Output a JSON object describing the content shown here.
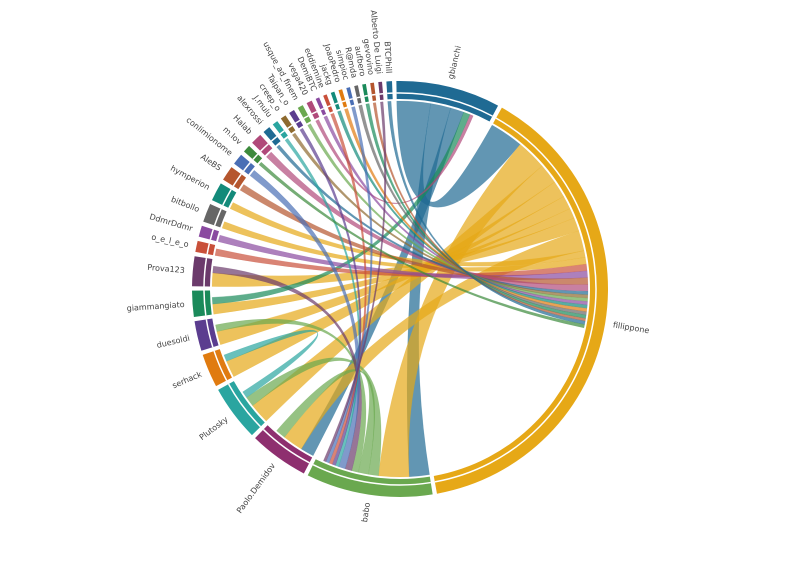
{
  "chart_data": {
    "type": "chord",
    "nodes": [
      {
        "name": "gbianchi",
        "color": "#1f6a93",
        "value": 28
      },
      {
        "name": "fillippone",
        "color": "#e6a817",
        "value": 135
      },
      {
        "name": "babo",
        "color": "#6aa84f",
        "value": 34
      },
      {
        "name": "Paolo.Demidov",
        "color": "#8e2f6f",
        "value": 16
      },
      {
        "name": "Plutosky",
        "color": "#2aa5a0",
        "value": 15
      },
      {
        "name": "serhack",
        "color": "#e07b10",
        "value": 9
      },
      {
        "name": "duesoldi",
        "color": "#5b3d8f",
        "value": 8
      },
      {
        "name": "giammangiato",
        "color": "#1a8a5a",
        "value": 7
      },
      {
        "name": "Prova123",
        "color": "#6b3a6b",
        "value": 8
      },
      {
        "name": "o_e_l_e_o",
        "color": "#c9503a",
        "value": 3
      },
      {
        "name": "DdmrDdmr",
        "color": "#8a4aa0",
        "value": 3
      },
      {
        "name": "bitbollo",
        "color": "#666666",
        "value": 5
      },
      {
        "name": "hymperion",
        "color": "#138a7a",
        "value": 5
      },
      {
        "name": "AleBS",
        "color": "#b5562e",
        "value": 4
      },
      {
        "name": "conlimionome",
        "color": "#4a6fb5",
        "value": 3
      },
      {
        "name": "m.lov",
        "color": "#3c8a3c",
        "value": 2
      },
      {
        "name": "Halab",
        "color": "#b04a7a",
        "value": 3
      },
      {
        "name": "alexrossi",
        "color": "#1f6a93",
        "value": 2
      },
      {
        "name": "J.mulu",
        "color": "#2aa5a0",
        "value": 1.5
      },
      {
        "name": "creep_o",
        "color": "#8e6a2f",
        "value": 1.5
      },
      {
        "name": "Taipan_o",
        "color": "#5b3d8f",
        "value": 1.5
      },
      {
        "name": "usque_ad_finem",
        "color": "#6aa84f",
        "value": 1.5
      },
      {
        "name": "vega420",
        "color": "#b04a7a",
        "value": 1.5
      },
      {
        "name": "DemiBTC",
        "color": "#8a4aa0",
        "value": 1
      },
      {
        "name": "eddiemine",
        "color": "#c9503a",
        "value": 1
      },
      {
        "name": "jackg",
        "color": "#138a7a",
        "value": 1
      },
      {
        "name": "JoaoPedro",
        "color": "#e07b10",
        "value": 1
      },
      {
        "name": "simpioc",
        "color": "#4a6fb5",
        "value": 1
      },
      {
        "name": "R@mda",
        "color": "#666666",
        "value": 1
      },
      {
        "name": "aufbero",
        "color": "#1a8a5a",
        "value": 1
      },
      {
        "name": "gevovino",
        "color": "#b5562e",
        "value": 1
      },
      {
        "name": "Alberto De Luigi",
        "color": "#6b3a6b",
        "value": 1
      },
      {
        "name": "BTCPhill",
        "color": "#1f6a93",
        "value": 1.5
      }
    ],
    "links": [
      {
        "source": 0,
        "target": 1,
        "value": 10
      },
      {
        "source": 0,
        "target": 2,
        "value": 6
      },
      {
        "source": 0,
        "target": 3,
        "value": 4
      },
      {
        "source": 1,
        "target": 2,
        "value": 9
      },
      {
        "source": 1,
        "target": 4,
        "value": 6
      },
      {
        "source": 1,
        "target": 5,
        "value": 5
      },
      {
        "source": 1,
        "target": 6,
        "value": 4
      },
      {
        "source": 1,
        "target": 7,
        "value": 3
      },
      {
        "source": 1,
        "target": 8,
        "value": 4
      },
      {
        "source": 1,
        "target": 3,
        "value": 6
      },
      {
        "source": 1,
        "target": 12,
        "value": 2
      },
      {
        "source": 1,
        "target": 11,
        "value": 2
      },
      {
        "source": 2,
        "target": 4,
        "value": 3
      },
      {
        "source": 2,
        "target": 3,
        "value": 3
      },
      {
        "source": 2,
        "target": 6,
        "value": 2
      },
      {
        "source": 4,
        "target": 5,
        "value": 2
      },
      {
        "source": 8,
        "target": 2,
        "value": 2
      },
      {
        "source": 7,
        "target": 0,
        "value": 2
      },
      {
        "source": 9,
        "target": 1,
        "value": 2
      },
      {
        "source": 10,
        "target": 1,
        "value": 2
      },
      {
        "source": 13,
        "target": 1,
        "value": 2
      },
      {
        "source": 14,
        "target": 2,
        "value": 2
      },
      {
        "source": 16,
        "target": 1,
        "value": 2
      },
      {
        "source": 17,
        "target": 1,
        "value": 1
      },
      {
        "source": 18,
        "target": 2,
        "value": 1
      },
      {
        "source": 19,
        "target": 1,
        "value": 1
      },
      {
        "source": 20,
        "target": 2,
        "value": 1
      },
      {
        "source": 21,
        "target": 1,
        "value": 1
      },
      {
        "source": 22,
        "target": 0,
        "value": 1
      },
      {
        "source": 23,
        "target": 1,
        "value": 1
      },
      {
        "source": 24,
        "target": 2,
        "value": 1
      },
      {
        "source": 25,
        "target": 1,
        "value": 1
      },
      {
        "source": 26,
        "target": 1,
        "value": 1
      },
      {
        "source": 27,
        "target": 2,
        "value": 1
      },
      {
        "source": 28,
        "target": 1,
        "value": 1
      },
      {
        "source": 29,
        "target": 1,
        "value": 1
      },
      {
        "source": 30,
        "target": 1,
        "value": 0.8
      },
      {
        "source": 31,
        "target": 2,
        "value": 0.8
      },
      {
        "source": 32,
        "target": 1,
        "value": 1
      },
      {
        "source": 15,
        "target": 1,
        "value": 1
      }
    ]
  }
}
